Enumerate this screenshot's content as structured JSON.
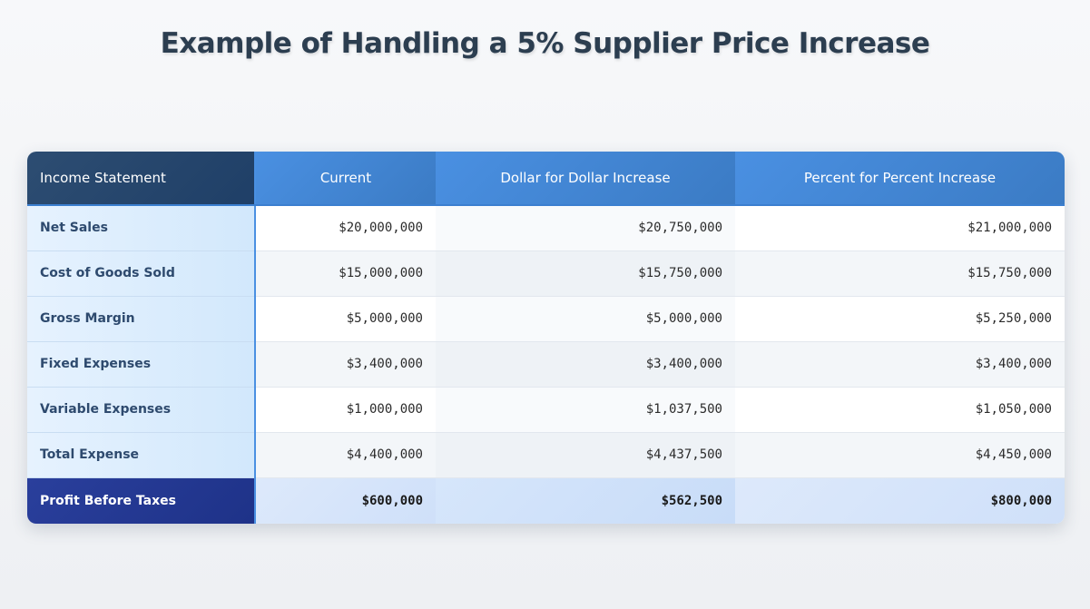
{
  "title": "Example of Handling a 5% Supplier Price Increase",
  "table": {
    "headers": [
      "Income Statement",
      "Current",
      "Dollar for Dollar Increase",
      "Percent for Percent Increase"
    ],
    "rows": [
      {
        "label": "Net Sales",
        "current": "$20,000,000",
        "dollar": "$20,750,000",
        "percent": "$21,000,000"
      },
      {
        "label": "Cost of Goods Sold",
        "current": "$15,000,000",
        "dollar": "$15,750,000",
        "percent": "$15,750,000"
      },
      {
        "label": "Gross Margin",
        "current": "$5,000,000",
        "dollar": "$5,000,000",
        "percent": "$5,250,000"
      },
      {
        "label": "Fixed Expenses",
        "current": "$3,400,000",
        "dollar": "$3,400,000",
        "percent": "$3,400,000"
      },
      {
        "label": "Variable Expenses",
        "current": "$1,000,000",
        "dollar": "$1,037,500",
        "percent": "$1,050,000"
      },
      {
        "label": "Total Expense",
        "current": "$4,400,000",
        "dollar": "$4,437,500",
        "percent": "$4,450,000"
      },
      {
        "label": "Profit Before Taxes",
        "current": "$600,000",
        "dollar": "$562,500",
        "percent": "$800,000"
      }
    ]
  },
  "colors": {
    "header_label_bg": "#1f3f67",
    "header_bg": "#4a90e2",
    "label_col_bg": "#d2e8fc",
    "total_label_bg": "#1e3288",
    "title_color": "#2c3e50"
  }
}
